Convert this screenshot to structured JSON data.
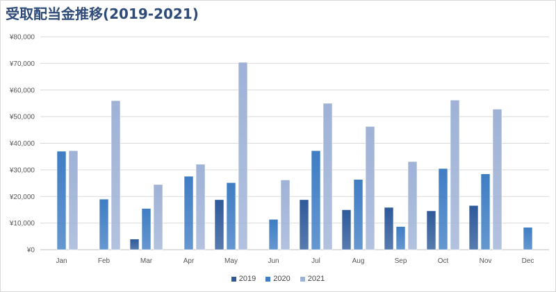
{
  "title": "受取配当金推移(2019-2021)",
  "chart_data": {
    "type": "bar",
    "title": "受取配当金推移(2019-2021)",
    "categories": [
      "Jan",
      "Feb",
      "Mar",
      "Apr",
      "May",
      "Jun",
      "Jul",
      "Aug",
      "Sep",
      "Oct",
      "Nov",
      "Dec"
    ],
    "series": [
      {
        "name": "2019",
        "color": "#2e5a9a",
        "values": [
          null,
          null,
          4000,
          null,
          18800,
          null,
          18800,
          15000,
          15900,
          14600,
          16600,
          null
        ]
      },
      {
        "name": "2020",
        "color": "#3f7dc4",
        "values": [
          37000,
          19000,
          15500,
          27600,
          25200,
          11400,
          37200,
          26400,
          8700,
          30500,
          28500,
          8400
        ]
      },
      {
        "name": "2021",
        "color": "#9fb2d6",
        "values": [
          37200,
          56000,
          24500,
          32100,
          70400,
          26200,
          55000,
          46300,
          33100,
          56200,
          52800,
          null
        ]
      }
    ],
    "ylim": [
      0,
      80000
    ],
    "yticks": [
      0,
      10000,
      20000,
      30000,
      40000,
      50000,
      60000,
      70000,
      80000
    ],
    "ytick_labels": [
      "¥0",
      "¥10,000",
      "¥20,000",
      "¥30,000",
      "¥40,000",
      "¥50,000",
      "¥60,000",
      "¥70,000",
      "¥80,000"
    ],
    "grid": true,
    "legend_position": "bottom-center",
    "xlabel": "",
    "ylabel": ""
  }
}
